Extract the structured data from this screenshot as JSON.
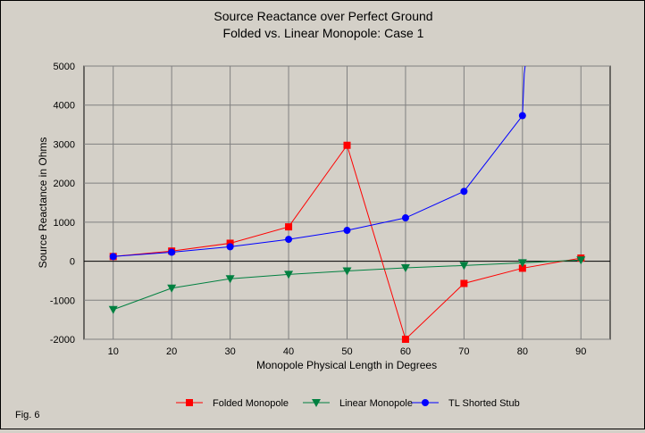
{
  "chart_data": {
    "type": "line",
    "title": "Source Reactance over Perfect Ground",
    "subtitle": "Folded vs. Linear Monopole: Case 1",
    "xlabel": "Monopole Physical Length in Degrees",
    "ylabel": "Source Reactance in Ohms",
    "x": [
      10,
      20,
      30,
      40,
      50,
      60,
      70,
      80,
      90
    ],
    "xticks": [
      10,
      20,
      30,
      40,
      50,
      60,
      70,
      80,
      90
    ],
    "xlim": [
      5,
      95
    ],
    "yticks": [
      -2000,
      -1000,
      0,
      1000,
      2000,
      3000,
      4000,
      5000
    ],
    "ylim": [
      -2000,
      5000
    ],
    "grid": true,
    "legend": "bottom",
    "figure_label": "Fig. 6",
    "series": [
      {
        "name": "Folded Monopole",
        "color": "#ff0000",
        "marker": "square",
        "x": [
          10,
          20,
          30,
          40,
          50,
          60,
          70,
          80,
          90
        ],
        "y": [
          120,
          260,
          460,
          880,
          2970,
          -2000,
          -570,
          -180,
          80
        ]
      },
      {
        "name": "Linear Monopole",
        "color": "#008040",
        "marker": "triangle-down",
        "x": [
          10,
          20,
          30,
          40,
          50,
          60,
          70,
          80,
          90
        ],
        "y": [
          -1240,
          -690,
          -450,
          -340,
          -250,
          -170,
          -110,
          -40,
          30
        ]
      },
      {
        "name": "TL Shorted Stub",
        "color": "#0000ff",
        "marker": "circle",
        "x": [
          10,
          20,
          30,
          40,
          50,
          60,
          70,
          80
        ],
        "y": [
          120,
          230,
          370,
          560,
          790,
          1110,
          1790,
          3730
        ],
        "continues_above_ylim_after": 80
      }
    ]
  }
}
